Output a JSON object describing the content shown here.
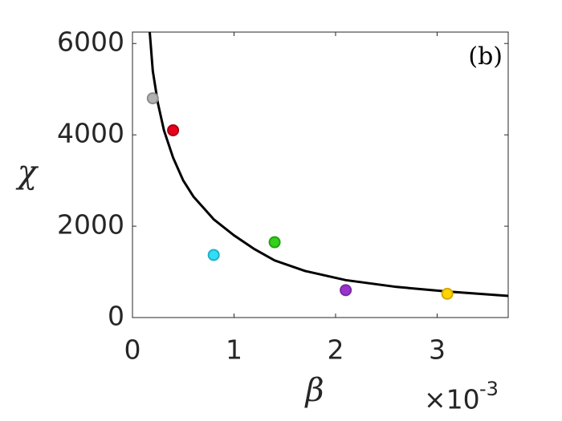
{
  "chart_data": {
    "type": "scatter",
    "xlabel": "β",
    "ylabel": "χ",
    "annotation": "(b)",
    "x_multiplier": {
      "base": "×10",
      "exponent": "-3"
    },
    "xlim": [
      0,
      3.7
    ],
    "ylim": [
      0,
      6250
    ],
    "xticks": [
      0,
      1,
      2,
      3
    ],
    "yticks": [
      0,
      2000,
      4000,
      6000
    ],
    "points": {
      "x": [
        0.2,
        0.4,
        0.8,
        1.4,
        2.1,
        3.1
      ],
      "y": [
        4800,
        4100,
        1370,
        1650,
        600,
        520
      ],
      "colors": [
        "#b3b3b3",
        "#e8001c",
        "#33ddf7",
        "#33d11a",
        "#9933cc",
        "#ffd400"
      ],
      "edge_colors": [
        "#8c8c8c",
        "#a80014",
        "#1fb0c9",
        "#23a011",
        "#7a2aa3",
        "#d4a800"
      ]
    },
    "curve": {
      "color": "#000000",
      "x": [
        0.17,
        0.2,
        0.25,
        0.31,
        0.4,
        0.5,
        0.6,
        0.8,
        1.0,
        1.2,
        1.4,
        1.7,
        2.1,
        2.6,
        3.1,
        3.7
      ],
      "y": [
        6250,
        5400,
        4700,
        4100,
        3500,
        3000,
        2650,
        2150,
        1800,
        1500,
        1250,
        1020,
        820,
        670,
        570,
        474
      ]
    }
  }
}
